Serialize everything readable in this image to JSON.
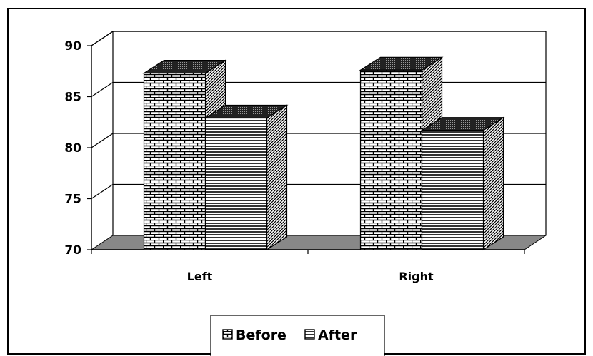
{
  "chart_data": {
    "type": "bar",
    "style": "3d-clustered-column",
    "categories": [
      "Left",
      "Right"
    ],
    "series": [
      {
        "name": "Before",
        "values": [
          87.3,
          87.6
        ],
        "pattern": "bricks"
      },
      {
        "name": "After",
        "values": [
          82.9,
          81.7
        ],
        "pattern": "horizontal-lines"
      }
    ],
    "ylim": [
      70,
      90
    ],
    "yticks": [
      "70",
      "75",
      "80",
      "85",
      "90"
    ],
    "grid": true,
    "legend_position": "bottom",
    "colors": {
      "floor": "#888888",
      "bar_base": "#ffffff",
      "pattern_ink": "#000000"
    }
  }
}
